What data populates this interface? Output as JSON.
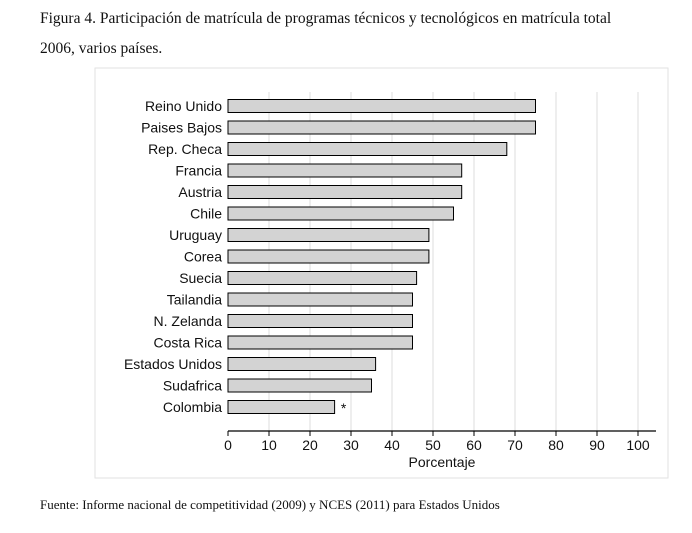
{
  "caption": {
    "line1": "Figura 4.  Participación de matrícula de programas técnicos y tecnológicos en matrícula total",
    "line2": "2006, varios países."
  },
  "source": "Fuente: Informe nacional de competitividad (2009) y NCES (2011) para Estados Unidos",
  "chart_data": {
    "type": "bar",
    "orientation": "horizontal",
    "categories": [
      "Reino Unido",
      "Paises Bajos",
      "Rep. Checa",
      "Francia",
      "Austria",
      "Chile",
      "Uruguay",
      "Corea",
      "Suecia",
      "Tailandia",
      "N. Zelanda",
      "Costa Rica",
      "Estados Unidos",
      "Sudafrica",
      "Colombia"
    ],
    "values": [
      75,
      75,
      68,
      57,
      57,
      55,
      49,
      49,
      46,
      45,
      45,
      45,
      36,
      35,
      26
    ],
    "annotations": [
      {
        "category": "Colombia",
        "text": "*"
      }
    ],
    "xlabel": "Porcentaje",
    "ylabel": "",
    "xlim": [
      0,
      100
    ],
    "xticks": [
      "0",
      "10",
      "20",
      "30",
      "40",
      "50",
      "60",
      "70",
      "80",
      "90",
      "100"
    ],
    "grid": "vertical",
    "bar_color": "#d3d3d3",
    "bar_edge": "#000000"
  }
}
